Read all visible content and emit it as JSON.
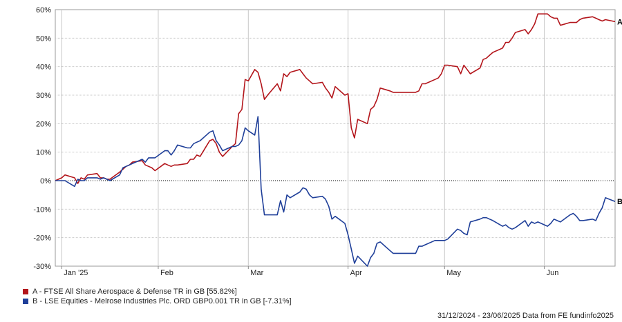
{
  "chart_data": {
    "type": "line",
    "xlim": [
      "2024-12-31",
      "2025-06-23"
    ],
    "ylim": [
      -30,
      60
    ],
    "y_ticks": [
      60,
      50,
      40,
      30,
      20,
      10,
      0,
      -10,
      -20,
      -30
    ],
    "y_tick_labels": [
      "60%",
      "50%",
      "40%",
      "30%",
      "20%",
      "10%",
      "0%",
      "-10%",
      "-20%",
      "-30%"
    ],
    "x_ticks": [
      {
        "date": "2025-01-02",
        "label": "Jan '25"
      },
      {
        "date": "2025-02-01",
        "label": "Feb"
      },
      {
        "date": "2025-03-01",
        "label": "Mar"
      },
      {
        "date": "2025-04-01",
        "label": "Apr"
      },
      {
        "date": "2025-05-01",
        "label": "May"
      },
      {
        "date": "2025-06-01",
        "label": "Jun"
      }
    ],
    "grid": true,
    "zero_line": "dotted",
    "series": [
      {
        "name": "A",
        "legend": "A - FTSE All Share Aerospace & Defense TR in GB [55.82%]",
        "color": "#b3151b",
        "points": [
          [
            "2024-12-31",
            0
          ],
          [
            "2025-01-02",
            1
          ],
          [
            "2025-01-03",
            2
          ],
          [
            "2025-01-06",
            1
          ],
          [
            "2025-01-07",
            -1
          ],
          [
            "2025-01-08",
            1
          ],
          [
            "2025-01-09",
            0.5
          ],
          [
            "2025-01-10",
            2
          ],
          [
            "2025-01-13",
            2.5
          ],
          [
            "2025-01-14",
            1
          ],
          [
            "2025-01-15",
            1
          ],
          [
            "2025-01-16",
            0.5
          ],
          [
            "2025-01-17",
            0.5
          ],
          [
            "2025-01-20",
            3
          ],
          [
            "2025-01-21",
            4
          ],
          [
            "2025-01-22",
            5
          ],
          [
            "2025-01-23",
            5.5
          ],
          [
            "2025-01-24",
            6.5
          ],
          [
            "2025-01-27",
            7
          ],
          [
            "2025-01-28",
            5.5
          ],
          [
            "2025-01-29",
            5
          ],
          [
            "2025-01-30",
            4.5
          ],
          [
            "2025-01-31",
            3.5
          ],
          [
            "2025-02-03",
            6
          ],
          [
            "2025-02-04",
            5.5
          ],
          [
            "2025-02-05",
            5
          ],
          [
            "2025-02-06",
            5.5
          ],
          [
            "2025-02-07",
            5.5
          ],
          [
            "2025-02-10",
            6
          ],
          [
            "2025-02-11",
            7.5
          ],
          [
            "2025-02-12",
            7.5
          ],
          [
            "2025-02-13",
            9
          ],
          [
            "2025-02-14",
            8.5
          ],
          [
            "2025-02-17",
            14
          ],
          [
            "2025-02-18",
            14.5
          ],
          [
            "2025-02-19",
            13
          ],
          [
            "2025-02-20",
            10
          ],
          [
            "2025-02-21",
            8.5
          ],
          [
            "2025-02-24",
            12
          ],
          [
            "2025-02-25",
            13
          ],
          [
            "2025-02-26",
            23.5
          ],
          [
            "2025-02-27",
            25
          ],
          [
            "2025-02-28",
            35.5
          ],
          [
            "2025-03-01",
            35
          ],
          [
            "2025-03-03",
            39
          ],
          [
            "2025-03-04",
            38
          ],
          [
            "2025-03-05",
            34
          ],
          [
            "2025-03-06",
            28.5
          ],
          [
            "2025-03-07",
            30
          ],
          [
            "2025-03-10",
            34
          ],
          [
            "2025-03-11",
            31.5
          ],
          [
            "2025-03-12",
            37.5
          ],
          [
            "2025-03-13",
            36.5
          ],
          [
            "2025-03-14",
            38
          ],
          [
            "2025-03-17",
            39
          ],
          [
            "2025-03-18",
            37.5
          ],
          [
            "2025-03-19",
            36
          ],
          [
            "2025-03-20",
            35
          ],
          [
            "2025-03-21",
            34
          ],
          [
            "2025-03-24",
            34.5
          ],
          [
            "2025-03-25",
            32.5
          ],
          [
            "2025-03-26",
            31
          ],
          [
            "2025-03-27",
            29
          ],
          [
            "2025-03-28",
            33
          ],
          [
            "2025-03-31",
            30
          ],
          [
            "2025-04-01",
            30.5
          ],
          [
            "2025-04-02",
            18.5
          ],
          [
            "2025-04-03",
            15
          ],
          [
            "2025-04-04",
            21.5
          ],
          [
            "2025-04-07",
            20
          ],
          [
            "2025-04-08",
            25
          ],
          [
            "2025-04-09",
            26
          ],
          [
            "2025-04-10",
            28.5
          ],
          [
            "2025-04-11",
            32.5
          ],
          [
            "2025-04-14",
            31.5
          ],
          [
            "2025-04-15",
            31
          ],
          [
            "2025-04-16",
            31
          ],
          [
            "2025-04-17",
            31
          ],
          [
            "2025-04-22",
            31
          ],
          [
            "2025-04-23",
            31.5
          ],
          [
            "2025-04-24",
            34
          ],
          [
            "2025-04-25",
            34
          ],
          [
            "2025-04-28",
            35.5
          ],
          [
            "2025-04-29",
            36
          ],
          [
            "2025-04-30",
            37.5
          ],
          [
            "2025-05-01",
            40.5
          ],
          [
            "2025-05-02",
            40.5
          ],
          [
            "2025-05-05",
            40
          ],
          [
            "2025-05-06",
            37.5
          ],
          [
            "2025-05-07",
            40.5
          ],
          [
            "2025-05-08",
            39
          ],
          [
            "2025-05-09",
            37.5
          ],
          [
            "2025-05-12",
            39.5
          ],
          [
            "2025-05-13",
            42.5
          ],
          [
            "2025-05-14",
            43
          ],
          [
            "2025-05-15",
            44
          ],
          [
            "2025-05-16",
            45
          ],
          [
            "2025-05-19",
            46.5
          ],
          [
            "2025-05-20",
            48.5
          ],
          [
            "2025-05-21",
            48.5
          ],
          [
            "2025-05-22",
            50
          ],
          [
            "2025-05-23",
            52
          ],
          [
            "2025-05-26",
            53
          ],
          [
            "2025-05-27",
            51.5
          ],
          [
            "2025-05-28",
            53
          ],
          [
            "2025-05-29",
            55
          ],
          [
            "2025-05-30",
            58.5
          ],
          [
            "2025-06-02",
            58.5
          ],
          [
            "2025-06-03",
            57.5
          ],
          [
            "2025-06-04",
            57
          ],
          [
            "2025-06-05",
            57
          ],
          [
            "2025-06-06",
            54.5
          ],
          [
            "2025-06-09",
            55.5
          ],
          [
            "2025-06-10",
            55.5
          ],
          [
            "2025-06-11",
            55.5
          ],
          [
            "2025-06-12",
            56.5
          ],
          [
            "2025-06-13",
            57
          ],
          [
            "2025-06-16",
            57.5
          ],
          [
            "2025-06-17",
            57
          ],
          [
            "2025-06-18",
            56.5
          ],
          [
            "2025-06-19",
            56
          ],
          [
            "2025-06-20",
            56.5
          ],
          [
            "2025-06-23",
            55.82
          ]
        ]
      },
      {
        "name": "B",
        "legend": "B - LSE Equities - Melrose Industries Plc. ORD GBP0.001 TR in GB [-7.31%]",
        "color": "#1f3f99",
        "points": [
          [
            "2024-12-31",
            0
          ],
          [
            "2025-01-02",
            0
          ],
          [
            "2025-01-03",
            0
          ],
          [
            "2025-01-06",
            -2
          ],
          [
            "2025-01-07",
            0.5
          ],
          [
            "2025-01-08",
            0
          ],
          [
            "2025-01-09",
            0
          ],
          [
            "2025-01-10",
            1
          ],
          [
            "2025-01-13",
            1
          ],
          [
            "2025-01-14",
            0.5
          ],
          [
            "2025-01-15",
            1
          ],
          [
            "2025-01-16",
            0.5
          ],
          [
            "2025-01-17",
            0
          ],
          [
            "2025-01-20",
            2
          ],
          [
            "2025-01-21",
            4.5
          ],
          [
            "2025-01-22",
            5
          ],
          [
            "2025-01-23",
            5.5
          ],
          [
            "2025-01-24",
            6
          ],
          [
            "2025-01-27",
            7.5
          ],
          [
            "2025-01-28",
            6.5
          ],
          [
            "2025-01-29",
            8
          ],
          [
            "2025-01-30",
            8
          ],
          [
            "2025-01-31",
            8
          ],
          [
            "2025-02-03",
            10.5
          ],
          [
            "2025-02-04",
            10.5
          ],
          [
            "2025-02-05",
            9
          ],
          [
            "2025-02-06",
            10.5
          ],
          [
            "2025-02-07",
            12.5
          ],
          [
            "2025-02-10",
            11.5
          ],
          [
            "2025-02-11",
            11.5
          ],
          [
            "2025-02-12",
            13
          ],
          [
            "2025-02-13",
            13.5
          ],
          [
            "2025-02-14",
            14
          ],
          [
            "2025-02-17",
            17
          ],
          [
            "2025-02-18",
            17.5
          ],
          [
            "2025-02-19",
            14
          ],
          [
            "2025-02-20",
            12.5
          ],
          [
            "2025-02-21",
            10.5
          ],
          [
            "2025-02-24",
            12
          ],
          [
            "2025-02-25",
            12
          ],
          [
            "2025-02-26",
            12.5
          ],
          [
            "2025-02-27",
            14
          ],
          [
            "2025-02-28",
            18.5
          ],
          [
            "2025-03-01",
            17.5
          ],
          [
            "2025-03-03",
            16
          ],
          [
            "2025-03-04",
            22.5
          ],
          [
            "2025-03-05",
            -3
          ],
          [
            "2025-03-06",
            -12
          ],
          [
            "2025-03-07",
            -12
          ],
          [
            "2025-03-10",
            -12
          ],
          [
            "2025-03-11",
            -7
          ],
          [
            "2025-03-12",
            -11
          ],
          [
            "2025-03-13",
            -5
          ],
          [
            "2025-03-14",
            -6
          ],
          [
            "2025-03-17",
            -4
          ],
          [
            "2025-03-18",
            -2.5
          ],
          [
            "2025-03-19",
            -3
          ],
          [
            "2025-03-20",
            -5
          ],
          [
            "2025-03-21",
            -6
          ],
          [
            "2025-03-24",
            -5.5
          ],
          [
            "2025-03-25",
            -6.5
          ],
          [
            "2025-03-26",
            -9
          ],
          [
            "2025-03-27",
            -13.5
          ],
          [
            "2025-03-28",
            -12.5
          ],
          [
            "2025-03-31",
            -15
          ],
          [
            "2025-04-01",
            -19
          ],
          [
            "2025-04-02",
            -24
          ],
          [
            "2025-04-03",
            -29
          ],
          [
            "2025-04-04",
            -26.5
          ],
          [
            "2025-04-07",
            -30
          ],
          [
            "2025-04-08",
            -27
          ],
          [
            "2025-04-09",
            -25.5
          ],
          [
            "2025-04-10",
            -22
          ],
          [
            "2025-04-11",
            -21.5
          ],
          [
            "2025-04-14",
            -24.5
          ],
          [
            "2025-04-15",
            -25.5
          ],
          [
            "2025-04-16",
            -25.5
          ],
          [
            "2025-04-17",
            -25.5
          ],
          [
            "2025-04-22",
            -25.5
          ],
          [
            "2025-04-23",
            -23
          ],
          [
            "2025-04-24",
            -23
          ],
          [
            "2025-04-25",
            -22.5
          ],
          [
            "2025-04-28",
            -21
          ],
          [
            "2025-04-29",
            -21
          ],
          [
            "2025-04-30",
            -21
          ],
          [
            "2025-05-01",
            -21
          ],
          [
            "2025-05-02",
            -20.5
          ],
          [
            "2025-05-05",
            -17
          ],
          [
            "2025-05-06",
            -17.5
          ],
          [
            "2025-05-07",
            -18.5
          ],
          [
            "2025-05-08",
            -19
          ],
          [
            "2025-05-09",
            -14.5
          ],
          [
            "2025-05-12",
            -13.5
          ],
          [
            "2025-05-13",
            -13
          ],
          [
            "2025-05-14",
            -13
          ],
          [
            "2025-05-15",
            -13.5
          ],
          [
            "2025-05-16",
            -14
          ],
          [
            "2025-05-19",
            -16
          ],
          [
            "2025-05-20",
            -15.5
          ],
          [
            "2025-05-21",
            -16.5
          ],
          [
            "2025-05-22",
            -17
          ],
          [
            "2025-05-23",
            -16.5
          ],
          [
            "2025-05-26",
            -14
          ],
          [
            "2025-05-27",
            -16
          ],
          [
            "2025-05-28",
            -14.5
          ],
          [
            "2025-05-29",
            -15
          ],
          [
            "2025-05-30",
            -14.5
          ],
          [
            "2025-06-02",
            -16
          ],
          [
            "2025-06-03",
            -15
          ],
          [
            "2025-06-04",
            -13.5
          ],
          [
            "2025-06-05",
            -14
          ],
          [
            "2025-06-06",
            -14.5
          ],
          [
            "2025-06-09",
            -12
          ],
          [
            "2025-06-10",
            -11.5
          ],
          [
            "2025-06-11",
            -12.5
          ],
          [
            "2025-06-12",
            -14
          ],
          [
            "2025-06-13",
            -14
          ],
          [
            "2025-06-16",
            -13.5
          ],
          [
            "2025-06-17",
            -14
          ],
          [
            "2025-06-18",
            -11.5
          ],
          [
            "2025-06-19",
            -9.5
          ],
          [
            "2025-06-20",
            -6
          ],
          [
            "2025-06-23",
            -7.31
          ]
        ]
      }
    ]
  },
  "legend": {
    "a_label": "A - FTSE All Share Aerospace & Defense TR in GB [55.82%]",
    "b_label": "B - LSE Equities - Melrose Industries Plc. ORD GBP0.001 TR in GB [-7.31%]"
  },
  "footer": "31/12/2024 - 23/06/2025 Data from FE fundinfo2025"
}
